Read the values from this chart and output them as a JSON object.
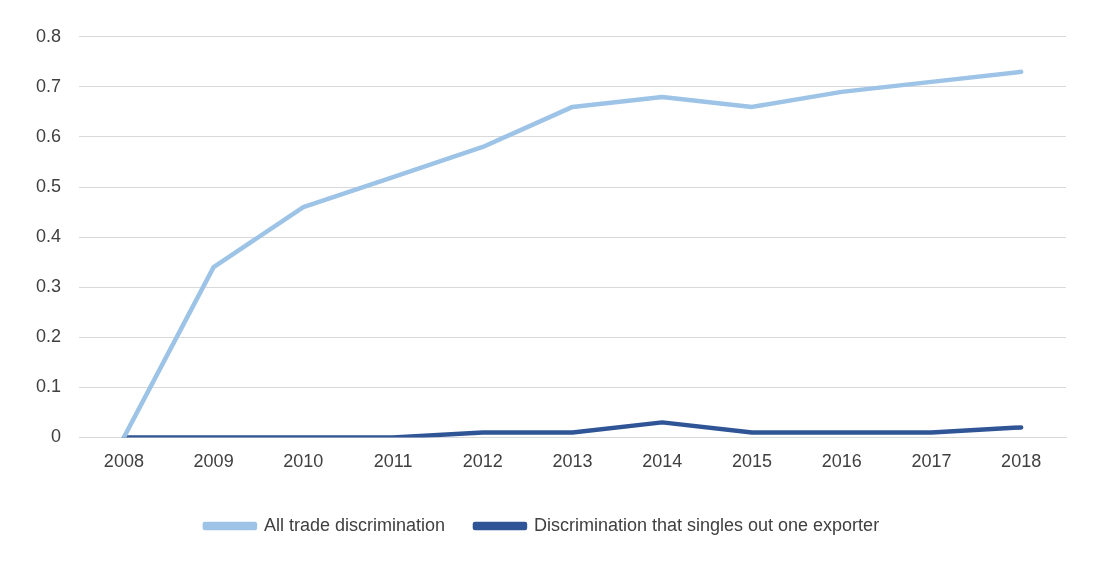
{
  "chart_data": {
    "type": "line",
    "categories": [
      "2008",
      "2009",
      "2010",
      "2011",
      "2012",
      "2013",
      "2014",
      "2015",
      "2016",
      "2017",
      "2018"
    ],
    "series": [
      {
        "name": "All trade discrimination",
        "color": "#9dc3e6",
        "values": [
          0,
          0.34,
          0.46,
          0.52,
          0.58,
          0.66,
          0.68,
          0.66,
          0.69,
          0.71,
          0.73
        ]
      },
      {
        "name": "Discrimination that singles out one exporter",
        "color": "#2f5597",
        "values": [
          0,
          0,
          0,
          0,
          0.01,
          0.01,
          0.03,
          0.01,
          0.01,
          0.01,
          0.02
        ]
      }
    ],
    "ylim": [
      0,
      0.8
    ],
    "yticks": [
      0,
      0.1,
      0.2,
      0.3,
      0.4,
      0.5,
      0.6,
      0.7,
      0.8
    ],
    "grid": "y",
    "legend": "bottom",
    "marker": "none",
    "line_style": "solid"
  }
}
